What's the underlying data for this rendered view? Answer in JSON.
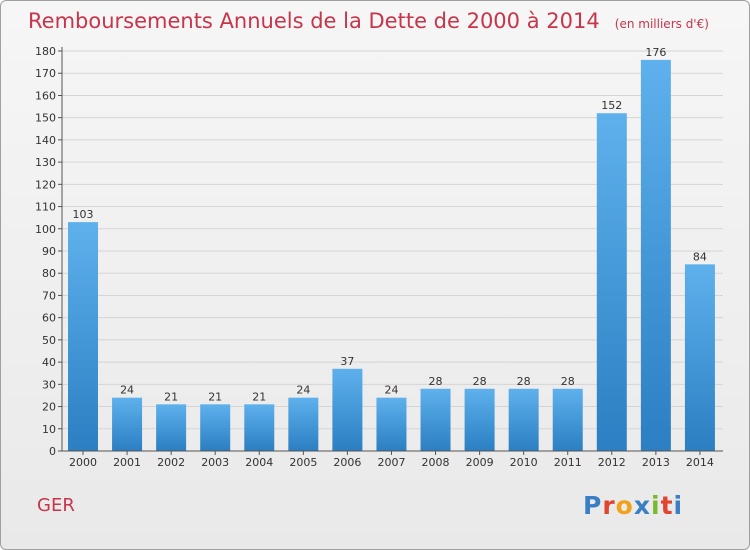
{
  "header": {
    "title": "Remboursements Annuels de la Dette de 2000 à 2014",
    "subtitle": "(en milliers d'€)"
  },
  "commune": "GER",
  "logo": {
    "text": "Proxiti",
    "colors": [
      "#3a7fc4",
      "#e0462f",
      "#f2a11a",
      "#3a7fc4",
      "#7bb831",
      "#e0462f",
      "#3a7fc4"
    ]
  },
  "colors": {
    "bar_light": "#5eb1ec",
    "bar_dark": "#2b7fc2",
    "grid": "#d5d5d5",
    "axis": "#555555",
    "text": "#333333",
    "accent": "#c8344a"
  },
  "chart_data": {
    "type": "bar",
    "title": "Remboursements Annuels de la Dette de 2000 à 2014",
    "subtitle": "(en milliers d'€)",
    "categories": [
      "2000",
      "2001",
      "2002",
      "2003",
      "2004",
      "2005",
      "2006",
      "2007",
      "2008",
      "2009",
      "2010",
      "2011",
      "2012",
      "2013",
      "2014"
    ],
    "values": [
      103,
      24,
      21,
      21,
      21,
      24,
      37,
      24,
      28,
      28,
      28,
      28,
      152,
      176,
      84
    ],
    "ylim": [
      0,
      180
    ],
    "ytick_step": 10,
    "grid": true,
    "data_labels": true
  }
}
